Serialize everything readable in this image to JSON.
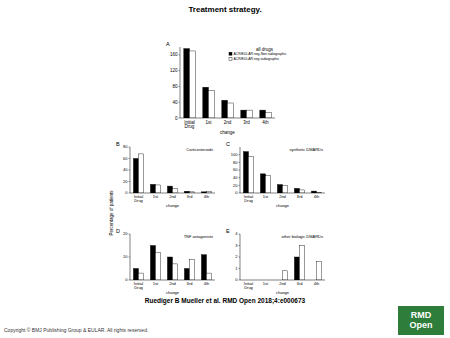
{
  "title": "Treatment strategy.",
  "citation": "Ruediger B Mueller et al. RMD Open 2018;4:e000673",
  "copyright": "Copyright © BMJ Publishing Group & EULAR. All rights reserved.",
  "logo": "RMD Open",
  "chart_data": [
    {
      "type": "bar",
      "title": "all drugs",
      "annotations": [
        "A"
      ],
      "xlabel": "change",
      "categories": [
        "Initial Drug",
        "1st",
        "2nd",
        "3rd",
        "4th"
      ],
      "series": [
        {
          "name": "ACR/EULAR neg-Non radiographic",
          "color": "#000000",
          "values": [
            176,
            78,
            45,
            20,
            20
          ]
        },
        {
          "name": "ACR/EULAR neg radiographic",
          "color": "#ffffff",
          "values": [
            170,
            70,
            38,
            20,
            14
          ]
        }
      ],
      "ylim": [
        0,
        180
      ],
      "yticks": [
        0,
        40,
        80,
        120,
        160
      ],
      "legend": "top-right"
    },
    {
      "type": "bar",
      "title": "Corticosteroids",
      "annotations": [
        "B"
      ],
      "xlabel": "change",
      "ylabel": "Percentage of patients",
      "categories": [
        "Initial Drug",
        "1st",
        "2nd",
        "3rd",
        "4th"
      ],
      "series": [
        {
          "color": "#000000",
          "values": [
            60,
            15,
            12,
            3,
            2
          ]
        },
        {
          "color": "#ffffff",
          "values": [
            68,
            14,
            8,
            2,
            3
          ]
        }
      ],
      "ylim": [
        0,
        80
      ],
      "yticks": [
        0,
        20,
        40,
        60,
        80
      ]
    },
    {
      "type": "bar",
      "title": "synthetic DMARDs",
      "annotations": [
        "C"
      ],
      "xlabel": "change",
      "categories": [
        "Initial Drug",
        "1st",
        "2nd",
        "3rd",
        "4th"
      ],
      "series": [
        {
          "color": "#000000",
          "values": [
            108,
            50,
            22,
            12,
            5
          ]
        },
        {
          "color": "#ffffff",
          "values": [
            96,
            45,
            20,
            8,
            2
          ]
        }
      ],
      "ylim": [
        0,
        120
      ],
      "yticks": [
        0,
        20,
        40,
        60,
        80,
        100
      ]
    },
    {
      "type": "bar",
      "title": "TNF antagonists",
      "annotations": [
        "D"
      ],
      "xlabel": "change",
      "categories": [
        "Initial Drug",
        "1st",
        "2nd",
        "3rd",
        "4th"
      ],
      "series": [
        {
          "color": "#000000",
          "values": [
            5,
            15,
            10,
            5,
            11
          ]
        },
        {
          "color": "#ffffff",
          "values": [
            3,
            12,
            7,
            9,
            3
          ]
        }
      ],
      "ylim": [
        0,
        20
      ],
      "yticks": [
        0,
        10,
        20
      ]
    },
    {
      "type": "bar",
      "title": "other biologic DMARDs",
      "annotations": [
        "E"
      ],
      "xlabel": "change",
      "categories": [
        "Initial Drug",
        "1st",
        "2nd",
        "3rd",
        "4th"
      ],
      "series": [
        {
          "color": "#000000",
          "values": [
            0,
            0,
            0,
            2,
            0
          ]
        },
        {
          "color": "#ffffff",
          "values": [
            0,
            0,
            0.8,
            3,
            1.6
          ]
        }
      ],
      "ylim": [
        0,
        4
      ],
      "yticks": [
        0,
        1,
        2,
        3,
        4
      ]
    }
  ]
}
